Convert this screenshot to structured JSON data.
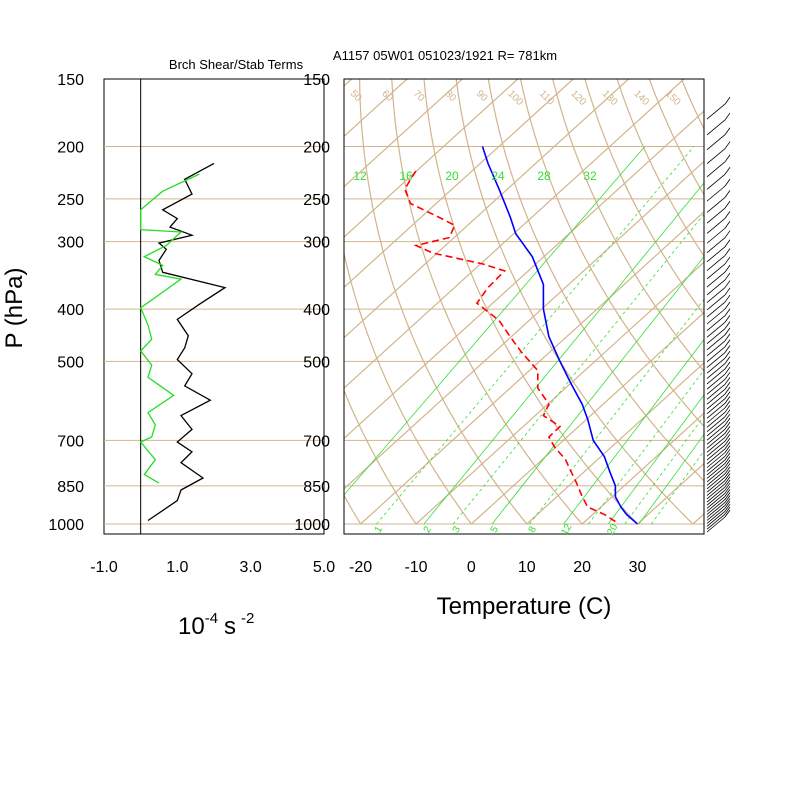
{
  "colors": {
    "grid": "#d2b48c",
    "axis": "#000000",
    "temp": "#0000ff",
    "dewpoint": "#ff0000",
    "mixing": "#33dd33",
    "shear": "#000000",
    "stab": "#22dd22"
  },
  "header": {
    "left_title": "Brch Shear/Stab Terms",
    "right_title": "A1157 05W01 051023/1921 R= 781km"
  },
  "chart_data": [
    {
      "type": "line",
      "title": "Brch Shear/Stab Terms",
      "ylabel": "P (hPa)",
      "xlabel_base": "10",
      "xlabel_exp": "-4",
      "xlabel_unit": "s",
      "xlabel_exp2": "-2",
      "xlim": [
        -1.0,
        5.0
      ],
      "ylim": [
        1000,
        150
      ],
      "x_ticks": [
        "-1.0",
        "1.0",
        "3.0",
        "5.0"
      ],
      "y_ticks": [
        "150",
        "200",
        "250",
        "300",
        "400",
        "500",
        "700",
        "850",
        "1000"
      ],
      "series": [
        {
          "key": "shear",
          "points": [
            [
              2.0,
              215
            ],
            [
              1.2,
              230
            ],
            [
              1.4,
              245
            ],
            [
              0.6,
              262
            ],
            [
              1.0,
              272
            ],
            [
              0.8,
              282
            ],
            [
              1.4,
              292
            ],
            [
              0.5,
              302
            ],
            [
              0.7,
              310
            ],
            [
              0.5,
              325
            ],
            [
              0.6,
              342
            ],
            [
              2.3,
              365
            ],
            [
              1.6,
              392
            ],
            [
              1.0,
              418
            ],
            [
              1.3,
              448
            ],
            [
              1.2,
              472
            ],
            [
              1.0,
              496
            ],
            [
              1.4,
              527
            ],
            [
              1.2,
              555
            ],
            [
              1.9,
              590
            ],
            [
              1.1,
              630
            ],
            [
              1.4,
              668
            ],
            [
              1.0,
              705
            ],
            [
              1.4,
              735
            ],
            [
              1.1,
              770
            ],
            [
              1.7,
              822
            ],
            [
              1.1,
              865
            ],
            [
              1.0,
              905
            ],
            [
              0.2,
              985
            ]
          ]
        },
        {
          "key": "stab",
          "points": [
            [
              1.6,
              225
            ],
            [
              0.6,
              242
            ],
            [
              0.0,
              262
            ],
            [
              0.0,
              285
            ],
            [
              1.1,
              288
            ],
            [
              0.7,
              305
            ],
            [
              0.1,
              320
            ],
            [
              0.6,
              332
            ],
            [
              0.4,
              345
            ],
            [
              1.1,
              352
            ],
            [
              0.0,
              398
            ],
            [
              0.2,
              428
            ],
            [
              0.3,
              455
            ],
            [
              0.0,
              478
            ],
            [
              0.3,
              508
            ],
            [
              0.2,
              535
            ],
            [
              0.9,
              578
            ],
            [
              0.2,
              622
            ],
            [
              0.4,
              655
            ],
            [
              0.3,
              690
            ],
            [
              0.0,
              705
            ],
            [
              0.4,
              760
            ],
            [
              0.1,
              810
            ],
            [
              0.5,
              840
            ]
          ]
        }
      ]
    },
    {
      "type": "line",
      "title": "A1157 05W01 051023/1921 R= 781km",
      "xlabel": "Temperature (C)",
      "ylabel": "P (hPa)",
      "xlim": [
        -23,
        42
      ],
      "ylim": [
        1000,
        150
      ],
      "x_ticks": [
        "-20",
        "-10",
        "0",
        "10",
        "20",
        "30"
      ],
      "y_ticks": [
        "150",
        "200",
        "250",
        "300",
        "400",
        "500",
        "700",
        "850",
        "1000"
      ],
      "series": [
        {
          "key": "temperature",
          "points": [
            [
              30,
              1000
            ],
            [
              28,
              960
            ],
            [
              27,
              930
            ],
            [
              26,
              890
            ],
            [
              26,
              850
            ],
            [
              25,
              800
            ],
            [
              24,
              750
            ],
            [
              22,
              700
            ],
            [
              21,
              640
            ],
            [
              20,
              600
            ],
            [
              18,
              550
            ],
            [
              16,
              500
            ],
            [
              14,
              450
            ],
            [
              13,
              400
            ],
            [
              13,
              360
            ],
            [
              11,
              320
            ],
            [
              8,
              290
            ],
            [
              7,
              270
            ],
            [
              5,
              240
            ],
            [
              3,
              215
            ],
            [
              2,
              200
            ]
          ]
        },
        {
          "key": "dewpoint",
          "points": [
            [
              26,
              990
            ],
            [
              24,
              960
            ],
            [
              21,
              930
            ],
            [
              20,
              890
            ],
            [
              19,
              840
            ],
            [
              18,
              800
            ],
            [
              17,
              760
            ],
            [
              15,
              720
            ],
            [
              14,
              690
            ],
            [
              16,
              660
            ],
            [
              13,
              630
            ],
            [
              14,
              600
            ],
            [
              12,
              560
            ],
            [
              12,
              520
            ],
            [
              9,
              480
            ],
            [
              7,
              450
            ],
            [
              5,
              420
            ],
            [
              1,
              390
            ],
            [
              3,
              365
            ],
            [
              6,
              340
            ],
            [
              2,
              330
            ],
            [
              -7,
              315
            ],
            [
              -10,
              305
            ],
            [
              -4,
              295
            ],
            [
              -3,
              280
            ],
            [
              -6,
              270
            ],
            [
              -11,
              255
            ],
            [
              -12,
              240
            ],
            [
              -11,
              230
            ],
            [
              -10,
              222
            ]
          ]
        }
      ],
      "dry_adiabat_labels": [
        "50",
        "60",
        "70",
        "80",
        "90",
        "100",
        "110",
        "120",
        "130",
        "140",
        "150"
      ],
      "mixing_ratio_top_labels": [
        "12",
        "16",
        "20",
        "24",
        "28",
        "32"
      ],
      "mixing_ratio_bottom_labels": [
        "1",
        "2",
        "3",
        "5",
        "8",
        "12",
        "20"
      ]
    }
  ]
}
